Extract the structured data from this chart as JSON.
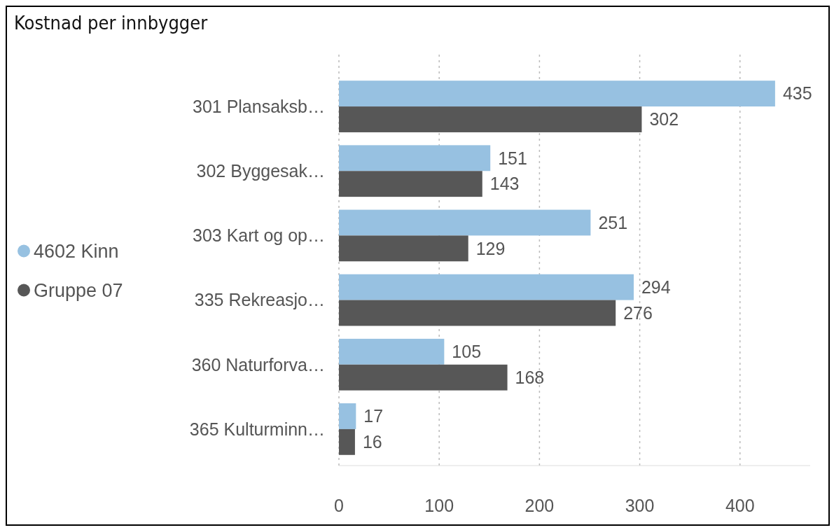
{
  "chart_data": {
    "type": "bar",
    "orientation": "horizontal",
    "title": "Kostnad per innbygger",
    "categories": [
      "301 Plansaksb…",
      "302 Byggesak…",
      "303 Kart og op…",
      "335 Rekreasjo…",
      "360 Naturforva…",
      "365 Kulturminn…"
    ],
    "series": [
      {
        "name": "4602 Kinn",
        "color": "#97c1e1",
        "values": [
          435,
          151,
          251,
          294,
          105,
          17
        ]
      },
      {
        "name": "Gruppe 07",
        "color": "#575757",
        "values": [
          302,
          143,
          129,
          276,
          168,
          16
        ]
      }
    ],
    "xlim": [
      0,
      470
    ],
    "xticks": [
      0,
      100,
      200,
      300,
      400
    ],
    "grid": "x",
    "legend": "left",
    "data_labels": true
  }
}
